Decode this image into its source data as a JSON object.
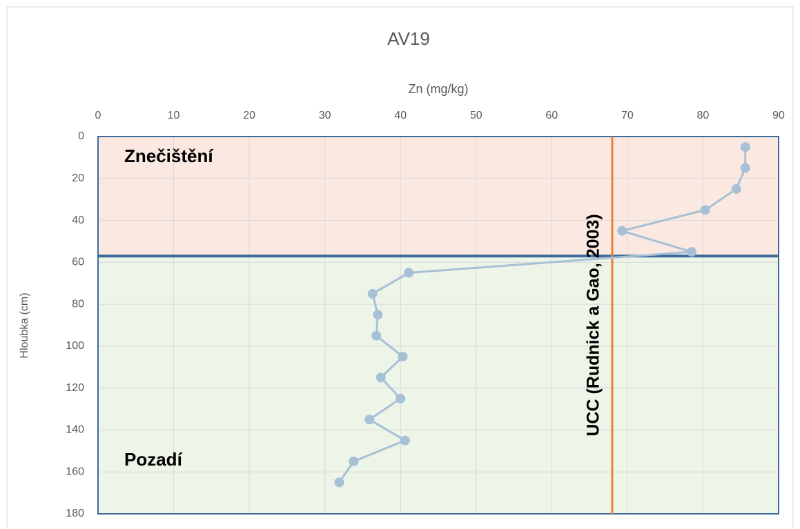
{
  "chart_data": {
    "type": "line",
    "title": "AV19",
    "xlabel": "Zn (mg/kg)",
    "ylabel": "Hloubka (cm)",
    "xlim": [
      0,
      90
    ],
    "xticks": [
      0,
      10,
      20,
      30,
      40,
      50,
      60,
      70,
      80,
      90
    ],
    "ylim": [
      0,
      180
    ],
    "yticks": [
      0,
      20,
      40,
      60,
      80,
      100,
      120,
      140,
      160,
      180
    ],
    "y_inverted": true,
    "x_axis_position": "top",
    "grid": true,
    "zones": [
      {
        "label": "Znečištění",
        "from": 0,
        "to": 57,
        "color": "#fbe9e1"
      },
      {
        "label": "Pozadí",
        "from": 57,
        "to": 180,
        "color": "#edf4e8"
      }
    ],
    "zone_border_color": "#3d6a9a",
    "reference_line": {
      "label": "UCC (Rudnick a Gao, 2003)",
      "x": 68,
      "color": "#ed7d31"
    },
    "series": [
      {
        "color": "#a6c0d6",
        "x": [
          85.6,
          85.6,
          84.4,
          80.3,
          69.3,
          78.5,
          41.1,
          36.3,
          37.0,
          36.8,
          40.3,
          37.4,
          40.0,
          35.9,
          40.6,
          33.8,
          31.9
        ],
        "values": [
          5,
          15,
          25,
          35,
          45,
          55,
          65,
          75,
          85,
          95,
          105,
          115,
          125,
          135,
          145,
          155,
          165
        ]
      }
    ]
  }
}
